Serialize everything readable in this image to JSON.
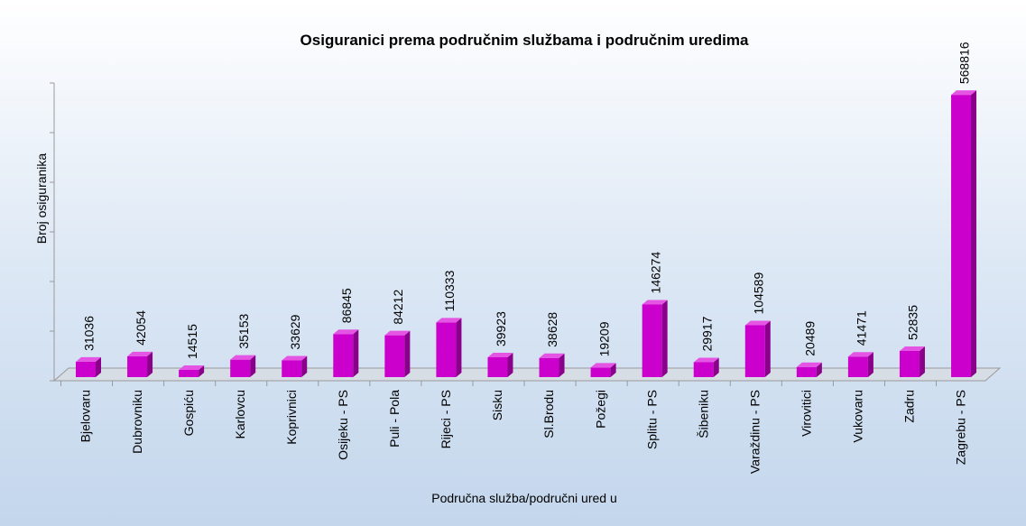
{
  "chart_data": {
    "type": "bar3d",
    "title": "Osiguranici prema područnim službama i područnim uredima",
    "y_label": "Broj osiguranika",
    "x_label": "Područna služba/područni ured u",
    "categories": [
      "Bjelovaru",
      "Dubrovniku",
      "Gospiću",
      "Karlovcu",
      "Koprivnici",
      "Osijeku - PS",
      "Puli - Pola",
      "Rijeci - PS",
      "Sisku",
      "Sl.Brodu",
      "Požegi",
      "Splitu - PS",
      "Šibeniku",
      "Varaždinu - PS",
      "Virovitici",
      "Vukovaru",
      "Zadru",
      "Zagrebu - PS"
    ],
    "values": [
      31036,
      42054,
      14515,
      35153,
      33629,
      86845,
      84212,
      110333,
      39923,
      38628,
      19209,
      146274,
      29917,
      104589,
      20489,
      41471,
      52835,
      568816
    ],
    "color": "#cc00cc",
    "ylim": [
      0,
      600000
    ],
    "yticks": [
      0,
      100000,
      200000,
      300000,
      400000,
      500000,
      600000
    ]
  }
}
